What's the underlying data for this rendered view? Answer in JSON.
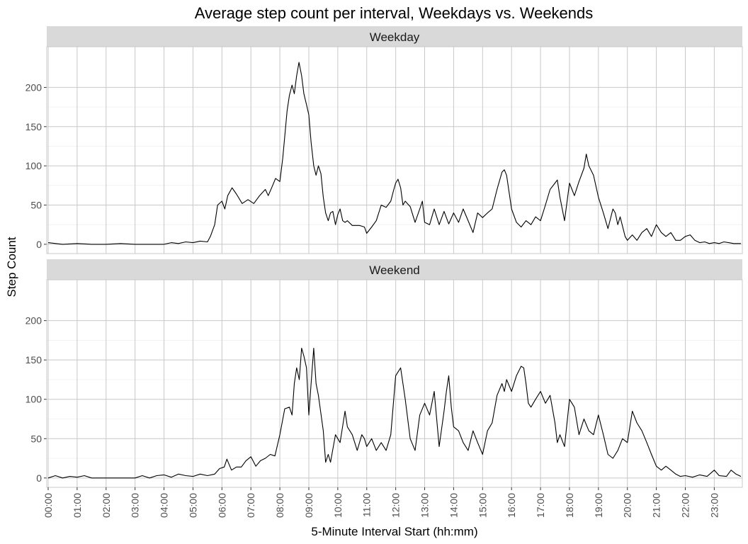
{
  "chart_data": {
    "type": "line",
    "title": "Average step count per interval, Weekdays vs. Weekends",
    "xlabel": "5-Minute Interval Start (hh:mm)",
    "ylabel": "Step Count",
    "xlim_hours": [
      0,
      23.92
    ],
    "ylim": [
      0,
      240
    ],
    "y_ticks": [
      0,
      50,
      100,
      150,
      200
    ],
    "x_tick_labels": [
      "00:00",
      "01:00",
      "02:00",
      "03:00",
      "04:00",
      "05:00",
      "06:00",
      "07:00",
      "08:00",
      "09:00",
      "10:00",
      "11:00",
      "12:00",
      "13:00",
      "14:00",
      "15:00",
      "16:00",
      "17:00",
      "18:00",
      "19:00",
      "20:00",
      "21:00",
      "22:00",
      "23:00"
    ],
    "grid": true,
    "facets": [
      {
        "label": "Weekday",
        "points": [
          [
            0,
            2
          ],
          [
            0.5,
            0
          ],
          [
            1,
            1
          ],
          [
            1.5,
            0
          ],
          [
            2,
            0
          ],
          [
            2.5,
            1
          ],
          [
            3,
            0
          ],
          [
            3.5,
            0
          ],
          [
            4,
            0
          ],
          [
            4.25,
            2
          ],
          [
            4.5,
            1
          ],
          [
            4.75,
            3
          ],
          [
            5,
            2
          ],
          [
            5.25,
            4
          ],
          [
            5.5,
            3
          ],
          [
            5.6,
            10
          ],
          [
            5.75,
            25
          ],
          [
            5.85,
            50
          ],
          [
            6,
            55
          ],
          [
            6.1,
            45
          ],
          [
            6.2,
            62
          ],
          [
            6.35,
            72
          ],
          [
            6.5,
            64
          ],
          [
            6.7,
            52
          ],
          [
            6.9,
            57
          ],
          [
            7.1,
            52
          ],
          [
            7.3,
            62
          ],
          [
            7.5,
            70
          ],
          [
            7.6,
            62
          ],
          [
            7.75,
            75
          ],
          [
            7.85,
            84
          ],
          [
            8,
            80
          ],
          [
            8.1,
            110
          ],
          [
            8.25,
            170
          ],
          [
            8.33,
            190
          ],
          [
            8.42,
            203
          ],
          [
            8.5,
            192
          ],
          [
            8.58,
            215
          ],
          [
            8.66,
            232
          ],
          [
            8.75,
            215
          ],
          [
            8.83,
            192
          ],
          [
            8.92,
            178
          ],
          [
            9,
            165
          ],
          [
            9.08,
            130
          ],
          [
            9.17,
            100
          ],
          [
            9.25,
            88
          ],
          [
            9.33,
            100
          ],
          [
            9.42,
            90
          ],
          [
            9.5,
            60
          ],
          [
            9.58,
            40
          ],
          [
            9.67,
            30
          ],
          [
            9.75,
            40
          ],
          [
            9.83,
            42
          ],
          [
            9.92,
            25
          ],
          [
            10,
            38
          ],
          [
            10.08,
            45
          ],
          [
            10.17,
            30
          ],
          [
            10.25,
            28
          ],
          [
            10.33,
            30
          ],
          [
            10.5,
            24
          ],
          [
            10.75,
            24
          ],
          [
            10.92,
            22
          ],
          [
            11,
            14
          ],
          [
            11.17,
            22
          ],
          [
            11.33,
            30
          ],
          [
            11.5,
            50
          ],
          [
            11.67,
            47
          ],
          [
            11.83,
            55
          ],
          [
            11.92,
            68
          ],
          [
            12,
            78
          ],
          [
            12.08,
            83
          ],
          [
            12.17,
            72
          ],
          [
            12.25,
            50
          ],
          [
            12.33,
            55
          ],
          [
            12.5,
            48
          ],
          [
            12.67,
            28
          ],
          [
            12.83,
            45
          ],
          [
            12.92,
            55
          ],
          [
            13,
            28
          ],
          [
            13.17,
            25
          ],
          [
            13.33,
            45
          ],
          [
            13.5,
            25
          ],
          [
            13.67,
            42
          ],
          [
            13.83,
            26
          ],
          [
            14,
            40
          ],
          [
            14.17,
            28
          ],
          [
            14.33,
            45
          ],
          [
            14.5,
            30
          ],
          [
            14.67,
            15
          ],
          [
            14.83,
            40
          ],
          [
            15,
            34
          ],
          [
            15.17,
            40
          ],
          [
            15.33,
            45
          ],
          [
            15.5,
            70
          ],
          [
            15.67,
            92
          ],
          [
            15.75,
            95
          ],
          [
            15.83,
            88
          ],
          [
            16,
            45
          ],
          [
            16.17,
            28
          ],
          [
            16.33,
            22
          ],
          [
            16.5,
            30
          ],
          [
            16.67,
            25
          ],
          [
            16.83,
            35
          ],
          [
            17,
            30
          ],
          [
            17.17,
            50
          ],
          [
            17.33,
            70
          ],
          [
            17.5,
            78
          ],
          [
            17.58,
            82
          ],
          [
            17.67,
            60
          ],
          [
            17.83,
            30
          ],
          [
            18,
            78
          ],
          [
            18.17,
            62
          ],
          [
            18.33,
            80
          ],
          [
            18.5,
            97
          ],
          [
            18.58,
            115
          ],
          [
            18.67,
            100
          ],
          [
            18.83,
            88
          ],
          [
            19,
            60
          ],
          [
            19.17,
            40
          ],
          [
            19.33,
            20
          ],
          [
            19.5,
            45
          ],
          [
            19.58,
            40
          ],
          [
            19.67,
            25
          ],
          [
            19.75,
            35
          ],
          [
            19.92,
            10
          ],
          [
            20,
            5
          ],
          [
            20.17,
            12
          ],
          [
            20.33,
            5
          ],
          [
            20.5,
            15
          ],
          [
            20.67,
            20
          ],
          [
            20.83,
            10
          ],
          [
            21,
            25
          ],
          [
            21.17,
            15
          ],
          [
            21.33,
            10
          ],
          [
            21.5,
            15
          ],
          [
            21.67,
            5
          ],
          [
            21.83,
            5
          ],
          [
            22,
            10
          ],
          [
            22.17,
            12
          ],
          [
            22.33,
            5
          ],
          [
            22.5,
            2
          ],
          [
            22.67,
            3
          ],
          [
            22.83,
            1
          ],
          [
            23,
            2
          ],
          [
            23.17,
            1
          ],
          [
            23.33,
            3
          ],
          [
            23.5,
            2
          ],
          [
            23.67,
            1
          ],
          [
            23.92,
            1
          ]
        ]
      },
      {
        "label": "Weekend",
        "points": [
          [
            0,
            0
          ],
          [
            0.25,
            3
          ],
          [
            0.5,
            0
          ],
          [
            0.75,
            2
          ],
          [
            1,
            1
          ],
          [
            1.25,
            3
          ],
          [
            1.5,
            0
          ],
          [
            2,
            0
          ],
          [
            2.5,
            0
          ],
          [
            3,
            0
          ],
          [
            3.25,
            3
          ],
          [
            3.5,
            0
          ],
          [
            3.75,
            3
          ],
          [
            4,
            4
          ],
          [
            4.25,
            1
          ],
          [
            4.5,
            5
          ],
          [
            4.75,
            3
          ],
          [
            5,
            2
          ],
          [
            5.25,
            5
          ],
          [
            5.5,
            3
          ],
          [
            5.75,
            5
          ],
          [
            5.92,
            12
          ],
          [
            6.08,
            14
          ],
          [
            6.17,
            24
          ],
          [
            6.33,
            10
          ],
          [
            6.5,
            14
          ],
          [
            6.67,
            14
          ],
          [
            6.83,
            22
          ],
          [
            7,
            27
          ],
          [
            7.17,
            15
          ],
          [
            7.33,
            22
          ],
          [
            7.5,
            25
          ],
          [
            7.67,
            30
          ],
          [
            7.83,
            28
          ],
          [
            8,
            55
          ],
          [
            8.17,
            88
          ],
          [
            8.33,
            90
          ],
          [
            8.42,
            80
          ],
          [
            8.5,
            120
          ],
          [
            8.58,
            140
          ],
          [
            8.67,
            125
          ],
          [
            8.75,
            165
          ],
          [
            8.83,
            155
          ],
          [
            8.92,
            140
          ],
          [
            9,
            80
          ],
          [
            9.08,
            120
          ],
          [
            9.17,
            165
          ],
          [
            9.25,
            120
          ],
          [
            9.33,
            105
          ],
          [
            9.5,
            60
          ],
          [
            9.58,
            20
          ],
          [
            9.67,
            30
          ],
          [
            9.75,
            20
          ],
          [
            9.92,
            55
          ],
          [
            10.08,
            45
          ],
          [
            10.25,
            85
          ],
          [
            10.33,
            65
          ],
          [
            10.5,
            55
          ],
          [
            10.67,
            35
          ],
          [
            10.83,
            55
          ],
          [
            10.92,
            50
          ],
          [
            11,
            40
          ],
          [
            11.17,
            50
          ],
          [
            11.33,
            35
          ],
          [
            11.5,
            45
          ],
          [
            11.67,
            35
          ],
          [
            11.83,
            55
          ],
          [
            12,
            130
          ],
          [
            12.17,
            140
          ],
          [
            12.33,
            100
          ],
          [
            12.5,
            50
          ],
          [
            12.67,
            35
          ],
          [
            12.83,
            80
          ],
          [
            13,
            95
          ],
          [
            13.17,
            80
          ],
          [
            13.33,
            110
          ],
          [
            13.5,
            40
          ],
          [
            13.67,
            85
          ],
          [
            13.75,
            110
          ],
          [
            13.83,
            130
          ],
          [
            13.92,
            90
          ],
          [
            14,
            65
          ],
          [
            14.17,
            60
          ],
          [
            14.33,
            45
          ],
          [
            14.5,
            35
          ],
          [
            14.67,
            60
          ],
          [
            14.83,
            45
          ],
          [
            15,
            30
          ],
          [
            15.17,
            60
          ],
          [
            15.33,
            70
          ],
          [
            15.5,
            105
          ],
          [
            15.67,
            120
          ],
          [
            15.75,
            110
          ],
          [
            15.83,
            125
          ],
          [
            16,
            110
          ],
          [
            16.17,
            130
          ],
          [
            16.33,
            142
          ],
          [
            16.42,
            140
          ],
          [
            16.5,
            120
          ],
          [
            16.58,
            95
          ],
          [
            16.67,
            90
          ],
          [
            16.83,
            100
          ],
          [
            17,
            110
          ],
          [
            17.17,
            95
          ],
          [
            17.33,
            105
          ],
          [
            17.5,
            70
          ],
          [
            17.58,
            45
          ],
          [
            17.67,
            55
          ],
          [
            17.83,
            40
          ],
          [
            18,
            100
          ],
          [
            18.17,
            90
          ],
          [
            18.33,
            55
          ],
          [
            18.5,
            75
          ],
          [
            18.67,
            60
          ],
          [
            18.83,
            55
          ],
          [
            19,
            80
          ],
          [
            19.17,
            55
          ],
          [
            19.33,
            30
          ],
          [
            19.5,
            25
          ],
          [
            19.67,
            35
          ],
          [
            19.83,
            50
          ],
          [
            20,
            45
          ],
          [
            20.17,
            85
          ],
          [
            20.33,
            70
          ],
          [
            20.5,
            60
          ],
          [
            20.67,
            45
          ],
          [
            20.83,
            30
          ],
          [
            21,
            15
          ],
          [
            21.17,
            10
          ],
          [
            21.33,
            15
          ],
          [
            21.5,
            10
          ],
          [
            21.67,
            5
          ],
          [
            21.83,
            2
          ],
          [
            22,
            3
          ],
          [
            22.25,
            1
          ],
          [
            22.5,
            4
          ],
          [
            22.75,
            2
          ],
          [
            23,
            10
          ],
          [
            23.17,
            3
          ],
          [
            23.42,
            2
          ],
          [
            23.58,
            10
          ],
          [
            23.75,
            5
          ],
          [
            23.92,
            2
          ]
        ]
      }
    ]
  }
}
